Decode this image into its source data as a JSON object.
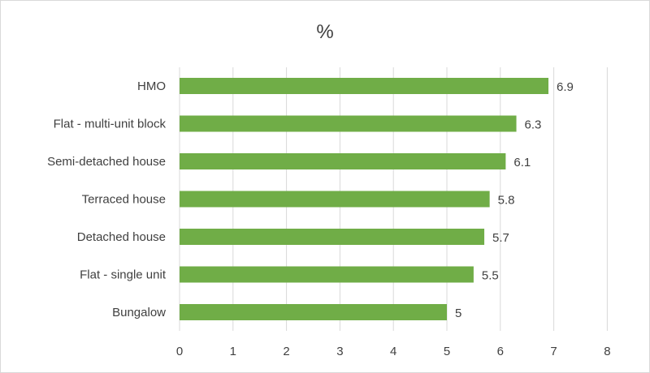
{
  "chart_data": {
    "type": "bar",
    "orientation": "horizontal",
    "title": "%",
    "xlabel": "",
    "ylabel": "",
    "categories": [
      "HMO",
      "Flat - multi-unit block",
      "Semi-detached house",
      "Terraced house",
      "Detached house",
      "Flat - single unit",
      "Bungalow"
    ],
    "values": [
      6.9,
      6.3,
      6.1,
      5.8,
      5.7,
      5.5,
      5
    ],
    "value_labels": [
      "6.9",
      "6.3",
      "6.1",
      "5.8",
      "5.7",
      "5.5",
      "5"
    ],
    "xlim": [
      0,
      8
    ],
    "xticks": [
      "0",
      "1",
      "2",
      "3",
      "4",
      "5",
      "6",
      "7",
      "8"
    ],
    "grid": true,
    "legend": "none",
    "bar_color": "#70ad47"
  }
}
